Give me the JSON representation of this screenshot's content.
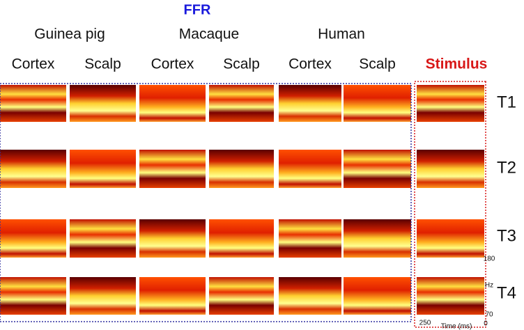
{
  "title": "FFR",
  "species": [
    "Guinea pig",
    "Macaque",
    "Human"
  ],
  "columns": [
    "Cortex",
    "Scalp",
    "Cortex",
    "Scalp",
    "Cortex",
    "Scalp"
  ],
  "stimulus": "Stimulus",
  "rows": [
    "T1",
    "T2",
    "T3",
    "T4"
  ],
  "axis": {
    "y_max": "180",
    "y_min": "70",
    "y_unit": "Hz",
    "x_min": "0",
    "x_max": "250",
    "x_label": "Time (ms)"
  }
}
